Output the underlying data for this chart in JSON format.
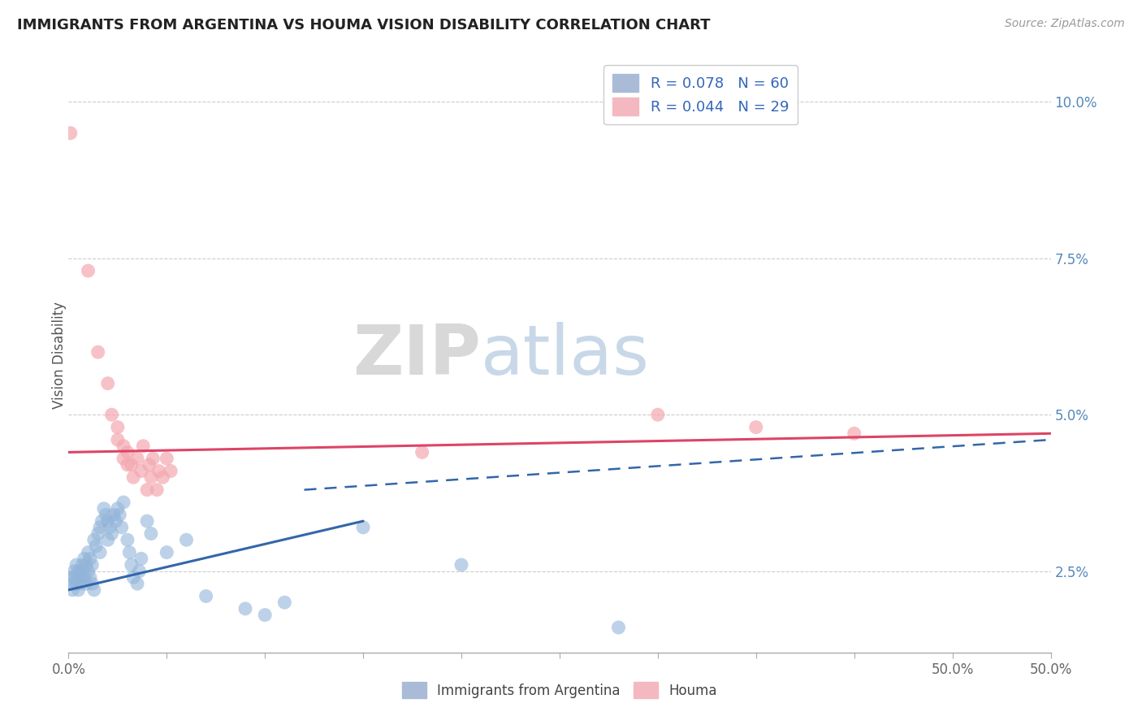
{
  "title": "IMMIGRANTS FROM ARGENTINA VS HOUMA VISION DISABILITY CORRELATION CHART",
  "source_text": "Source: ZipAtlas.com",
  "ylabel": "Vision Disability",
  "legend_labels": [
    "Immigrants from Argentina",
    "Houma"
  ],
  "legend_r": [
    0.078,
    0.044
  ],
  "legend_n": [
    60,
    29
  ],
  "xlim": [
    0.0,
    0.5
  ],
  "ylim": [
    0.012,
    0.107
  ],
  "xtick_positions": [
    0.0,
    0.05,
    0.1,
    0.15,
    0.2,
    0.25,
    0.3,
    0.35,
    0.4,
    0.45,
    0.5
  ],
  "xtick_labels_show": {
    "0.0": "0.0%",
    "0.5": "50.0%"
  },
  "ytick_positions": [
    0.025,
    0.05,
    0.075,
    0.1
  ],
  "ytick_labels": [
    "2.5%",
    "5.0%",
    "7.5%",
    "10.0%"
  ],
  "blue_color": "#92B4D9",
  "pink_color": "#F4A8B0",
  "blue_scatter": [
    [
      0.001,
      0.024
    ],
    [
      0.002,
      0.023
    ],
    [
      0.002,
      0.022
    ],
    [
      0.003,
      0.025
    ],
    [
      0.003,
      0.024
    ],
    [
      0.004,
      0.023
    ],
    [
      0.004,
      0.026
    ],
    [
      0.005,
      0.022
    ],
    [
      0.005,
      0.025
    ],
    [
      0.006,
      0.024
    ],
    [
      0.006,
      0.023
    ],
    [
      0.007,
      0.026
    ],
    [
      0.007,
      0.025
    ],
    [
      0.008,
      0.024
    ],
    [
      0.008,
      0.027
    ],
    [
      0.009,
      0.023
    ],
    [
      0.009,
      0.026
    ],
    [
      0.01,
      0.025
    ],
    [
      0.01,
      0.028
    ],
    [
      0.011,
      0.024
    ],
    [
      0.011,
      0.027
    ],
    [
      0.012,
      0.026
    ],
    [
      0.012,
      0.023
    ],
    [
      0.013,
      0.022
    ],
    [
      0.013,
      0.03
    ],
    [
      0.014,
      0.029
    ],
    [
      0.015,
      0.031
    ],
    [
      0.016,
      0.032
    ],
    [
      0.016,
      0.028
    ],
    [
      0.017,
      0.033
    ],
    [
      0.018,
      0.035
    ],
    [
      0.019,
      0.034
    ],
    [
      0.02,
      0.033
    ],
    [
      0.02,
      0.03
    ],
    [
      0.021,
      0.032
    ],
    [
      0.022,
      0.031
    ],
    [
      0.023,
      0.034
    ],
    [
      0.024,
      0.033
    ],
    [
      0.025,
      0.035
    ],
    [
      0.026,
      0.034
    ],
    [
      0.027,
      0.032
    ],
    [
      0.028,
      0.036
    ],
    [
      0.03,
      0.03
    ],
    [
      0.031,
      0.028
    ],
    [
      0.032,
      0.026
    ],
    [
      0.033,
      0.024
    ],
    [
      0.035,
      0.023
    ],
    [
      0.036,
      0.025
    ],
    [
      0.037,
      0.027
    ],
    [
      0.04,
      0.033
    ],
    [
      0.042,
      0.031
    ],
    [
      0.05,
      0.028
    ],
    [
      0.06,
      0.03
    ],
    [
      0.07,
      0.021
    ],
    [
      0.09,
      0.019
    ],
    [
      0.1,
      0.018
    ],
    [
      0.11,
      0.02
    ],
    [
      0.15,
      0.032
    ],
    [
      0.2,
      0.026
    ],
    [
      0.28,
      0.016
    ]
  ],
  "pink_scatter": [
    [
      0.001,
      0.095
    ],
    [
      0.01,
      0.073
    ],
    [
      0.015,
      0.06
    ],
    [
      0.02,
      0.055
    ],
    [
      0.022,
      0.05
    ],
    [
      0.025,
      0.048
    ],
    [
      0.025,
      0.046
    ],
    [
      0.028,
      0.045
    ],
    [
      0.028,
      0.043
    ],
    [
      0.03,
      0.044
    ],
    [
      0.03,
      0.042
    ],
    [
      0.032,
      0.042
    ],
    [
      0.033,
      0.04
    ],
    [
      0.035,
      0.043
    ],
    [
      0.037,
      0.041
    ],
    [
      0.038,
      0.045
    ],
    [
      0.04,
      0.038
    ],
    [
      0.041,
      0.042
    ],
    [
      0.042,
      0.04
    ],
    [
      0.043,
      0.043
    ],
    [
      0.045,
      0.038
    ],
    [
      0.046,
      0.041
    ],
    [
      0.048,
      0.04
    ],
    [
      0.18,
      0.044
    ],
    [
      0.3,
      0.05
    ],
    [
      0.35,
      0.048
    ],
    [
      0.4,
      0.047
    ],
    [
      0.05,
      0.043
    ],
    [
      0.052,
      0.041
    ]
  ],
  "blue_solid_line": [
    [
      0.0,
      0.022
    ],
    [
      0.15,
      0.033
    ]
  ],
  "pink_solid_line": [
    [
      0.0,
      0.044
    ],
    [
      0.5,
      0.047
    ]
  ],
  "blue_dash_line": [
    [
      0.12,
      0.038
    ],
    [
      0.5,
      0.046
    ]
  ],
  "background_color": "#ffffff",
  "grid_color": "#cccccc",
  "watermark_zip": "ZIP",
  "watermark_atlas": "atlas",
  "title_fontsize": 13,
  "axis_label_color": "#5588BB",
  "tick_color_y": "#5588BB",
  "tick_color_x": "#666666"
}
